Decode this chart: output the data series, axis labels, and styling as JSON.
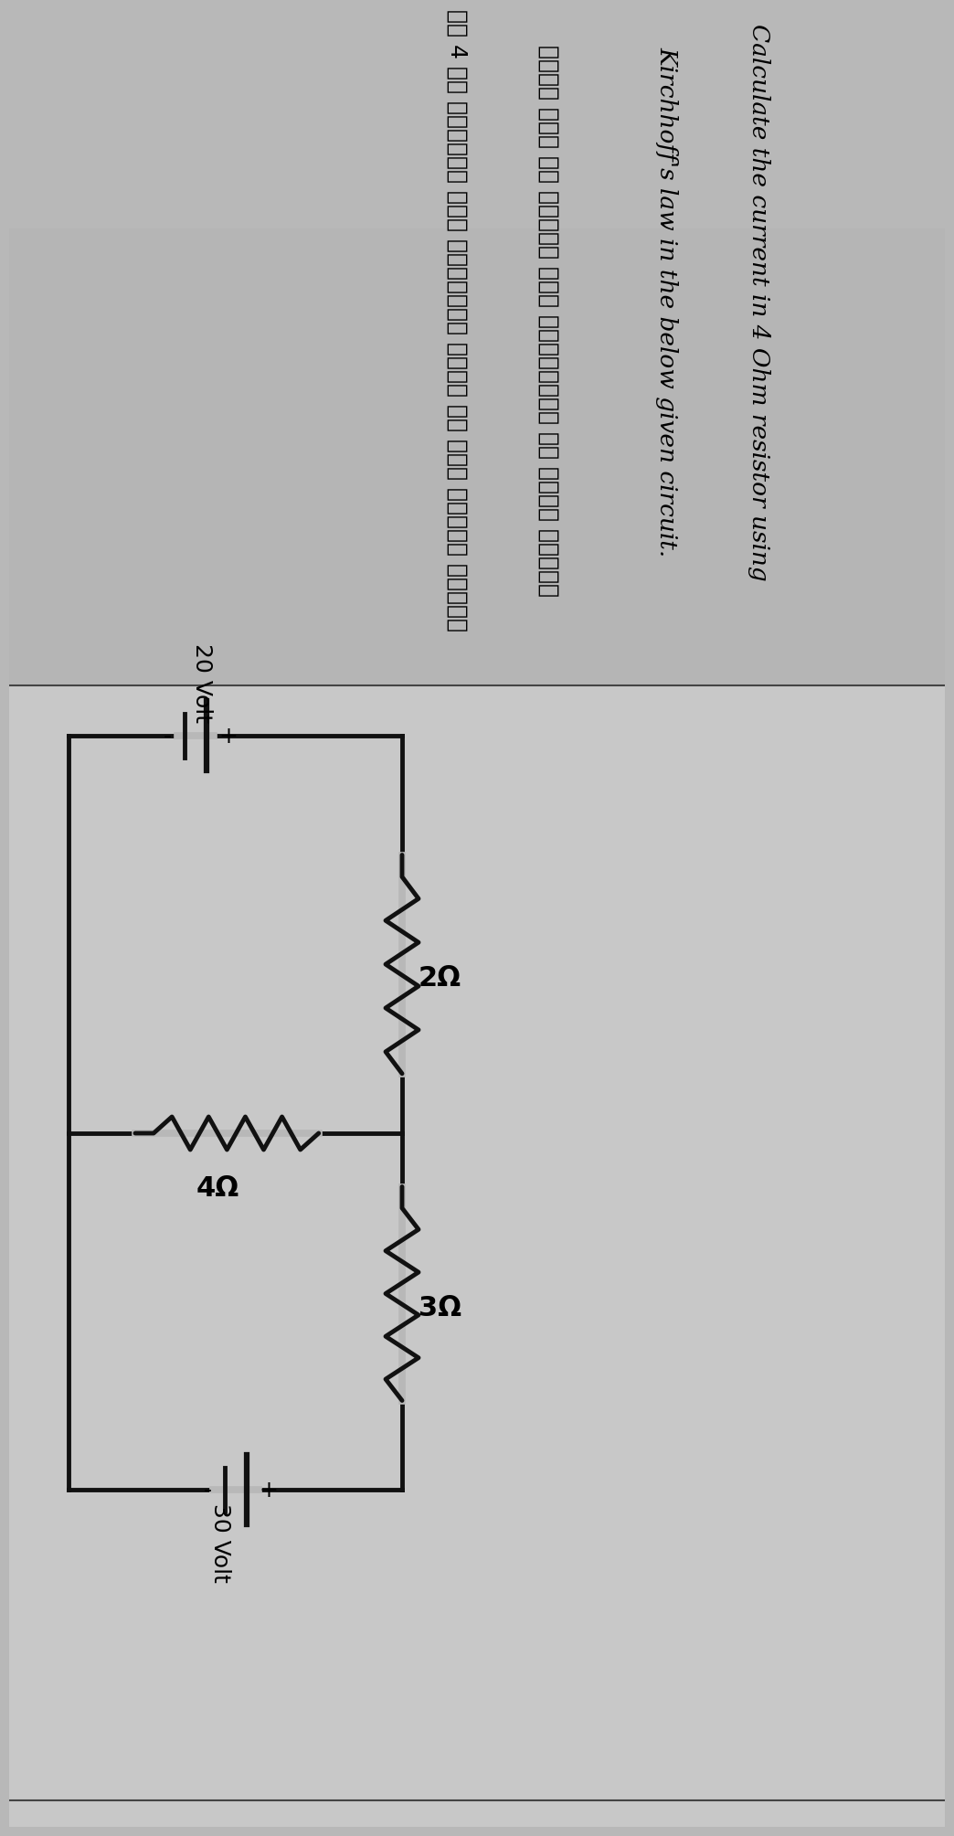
{
  "bg_color": "#b8b8b8",
  "title_en": "Calculate the current in 4 Ohm resistor using",
  "title_en2": "Kirchhoff's law in the below given circuit.",
  "title_hi_line1": "नीचे दिए गए परिपथ में किर्चहॉफ का नियम लगाकर",
  "title_hi_line2": "दर 4 ओम अवरोधक में विद्युत धारा का मान ज्ञात करें।",
  "v20": "20 Volt",
  "v30": "30 Volt",
  "r1_label": "2Ω",
  "r2_label": "4Ω",
  "r3_label": "3Ω",
  "lc": "#111111",
  "lw": 3.5,
  "paper_color": "#d0d0d0",
  "paper_top_color": "#c0c0c0"
}
